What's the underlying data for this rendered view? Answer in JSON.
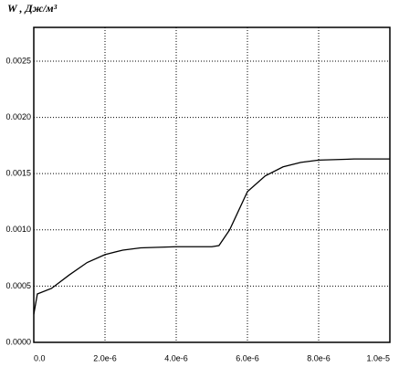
{
  "chart_data": {
    "type": "line",
    "title": "W , Дж/м³",
    "x": [
      0,
      1e-07,
      5e-07,
      1e-06,
      1.5e-06,
      2e-06,
      2.5e-06,
      3e-06,
      4e-06,
      5e-06,
      5.2e-06,
      5.5e-06,
      6e-06,
      6.5e-06,
      7e-06,
      7.5e-06,
      8e-06,
      9e-06,
      1e-05
    ],
    "series": [
      {
        "color": "#000000",
        "values": [
          0.00025,
          0.00043,
          0.00048,
          0.0006,
          0.00071,
          0.00078,
          0.00082,
          0.00084,
          0.00085,
          0.00085,
          0.00086,
          0.001,
          0.00134,
          0.00148,
          0.00156,
          0.0016,
          0.00162,
          0.00163,
          0.00163
        ]
      }
    ],
    "xlim": [
      0,
      1e-05
    ],
    "ylim": [
      0,
      0.0028
    ],
    "xticks": [
      {
        "value": 0,
        "label": "0.0"
      },
      {
        "value": 2e-06,
        "label": "2.0e-6"
      },
      {
        "value": 4e-06,
        "label": "4.0e-6"
      },
      {
        "value": 6e-06,
        "label": "6.0e-6"
      },
      {
        "value": 8e-06,
        "label": "8.0e-6"
      },
      {
        "value": 1e-05,
        "label": "1.0e-5"
      }
    ],
    "yticks": [
      {
        "value": 0,
        "label": "0.0000"
      },
      {
        "value": 0.0005,
        "label": "0.0005"
      },
      {
        "value": 0.001,
        "label": "0.0010"
      },
      {
        "value": 0.0015,
        "label": "0.0015"
      },
      {
        "value": 0.002,
        "label": "0.0020"
      },
      {
        "value": 0.0025,
        "label": "0.0025"
      }
    ],
    "grid": true
  }
}
